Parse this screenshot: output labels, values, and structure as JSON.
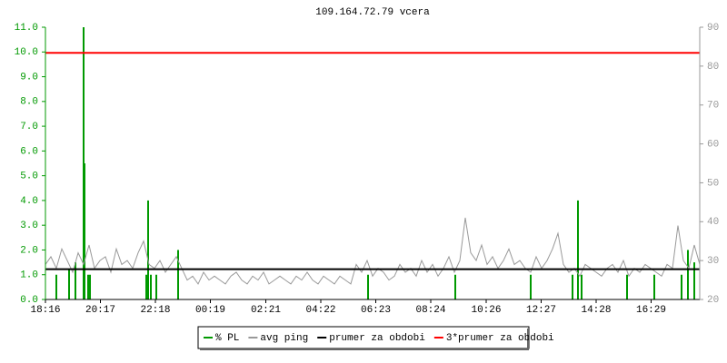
{
  "chart_data": {
    "type": "line",
    "title": "109.164.72.79 vcera",
    "xlim": [
      0,
      1440
    ],
    "xticks": [
      {
        "value": 0,
        "label": "18:16"
      },
      {
        "value": 121,
        "label": "20:17"
      },
      {
        "value": 242,
        "label": "22:18"
      },
      {
        "value": 363,
        "label": "00:19"
      },
      {
        "value": 485,
        "label": "02:21"
      },
      {
        "value": 606,
        "label": "04:22"
      },
      {
        "value": 727,
        "label": "06:23"
      },
      {
        "value": 848,
        "label": "08:24"
      },
      {
        "value": 970,
        "label": "10:26"
      },
      {
        "value": 1091,
        "label": "12:27"
      },
      {
        "value": 1212,
        "label": "14:28"
      },
      {
        "value": 1333,
        "label": "16:29"
      }
    ],
    "ylim": [
      0,
      11
    ],
    "yticks": [
      {
        "value": 0,
        "label": "0.0"
      },
      {
        "value": 1,
        "label": "1.0"
      },
      {
        "value": 2,
        "label": "2.0"
      },
      {
        "value": 3,
        "label": "3.0"
      },
      {
        "value": 4,
        "label": "4.0"
      },
      {
        "value": 5,
        "label": "5.0"
      },
      {
        "value": 6,
        "label": "6.0"
      },
      {
        "value": 7,
        "label": "7.0"
      },
      {
        "value": 8,
        "label": "8.0"
      },
      {
        "value": 9,
        "label": "9.0"
      },
      {
        "value": 10,
        "label": "10.0"
      },
      {
        "value": 11,
        "label": "11.0"
      }
    ],
    "y2lim": [
      20,
      90
    ],
    "y2ticks": [
      20,
      30,
      40,
      50,
      60,
      70,
      80,
      90
    ],
    "grid": false,
    "legend": "bottom",
    "series": [
      {
        "name": "% PL",
        "color": "#009900",
        "style": "impulse",
        "x": [
          24,
          52,
          66,
          84,
          86,
          94,
          98,
          222,
          226,
          232,
          244,
          292,
          710,
          902,
          1068,
          1160,
          1172,
          1180,
          1280,
          1340,
          1400,
          1414,
          1428
        ],
        "values": [
          1.0,
          1.2,
          1.5,
          11.0,
          5.5,
          1.0,
          1.0,
          1.0,
          4.0,
          1.0,
          1.0,
          2.0,
          1.0,
          1.0,
          1.0,
          1.0,
          4.0,
          1.0,
          1.0,
          1.0,
          1.0,
          2.0,
          1.5
        ]
      },
      {
        "name": "avg ping",
        "color": "#999999",
        "axis": "y2",
        "x": [
          0,
          12,
          24,
          36,
          48,
          60,
          72,
          84,
          96,
          108,
          120,
          132,
          144,
          156,
          168,
          180,
          192,
          204,
          216,
          228,
          240,
          252,
          264,
          276,
          288,
          300,
          312,
          324,
          336,
          348,
          360,
          372,
          384,
          396,
          408,
          420,
          432,
          444,
          456,
          468,
          480,
          492,
          504,
          516,
          528,
          540,
          552,
          564,
          576,
          588,
          600,
          612,
          624,
          636,
          648,
          660,
          672,
          684,
          696,
          708,
          720,
          732,
          744,
          756,
          768,
          780,
          792,
          804,
          816,
          828,
          840,
          852,
          864,
          876,
          888,
          900,
          912,
          924,
          936,
          948,
          960,
          972,
          984,
          996,
          1008,
          1020,
          1032,
          1044,
          1056,
          1068,
          1080,
          1092,
          1104,
          1116,
          1128,
          1140,
          1152,
          1164,
          1176,
          1188,
          1200,
          1212,
          1224,
          1236,
          1248,
          1260,
          1272,
          1284,
          1296,
          1308,
          1320,
          1332,
          1344,
          1356,
          1368,
          1380,
          1392,
          1404,
          1416,
          1428,
          1440
        ],
        "values": [
          29,
          31,
          28,
          33,
          30,
          27,
          32,
          29,
          34,
          28,
          30,
          31,
          27,
          33,
          29,
          30,
          28,
          32,
          35,
          29,
          28,
          30,
          27,
          29,
          31,
          28,
          25,
          26,
          24,
          27,
          25,
          26,
          25,
          24,
          26,
          27,
          25,
          24,
          26,
          25,
          27,
          24,
          25,
          26,
          25,
          24,
          26,
          25,
          27,
          25,
          24,
          26,
          25,
          24,
          26,
          25,
          24,
          29,
          27,
          30,
          26,
          28,
          27,
          25,
          26,
          29,
          27,
          28,
          26,
          30,
          27,
          29,
          26,
          28,
          31,
          27,
          30,
          41,
          32,
          30,
          34,
          29,
          31,
          28,
          30,
          33,
          29,
          30,
          28,
          27,
          31,
          28,
          30,
          33,
          37,
          29,
          27,
          28,
          26,
          29,
          28,
          27,
          26,
          28,
          29,
          27,
          30,
          26,
          28,
          27,
          29,
          28,
          27,
          26,
          29,
          28,
          39,
          30,
          28,
          34,
          29
        ]
      },
      {
        "name": "prumer za obdobi",
        "color": "#000000",
        "axis": "y2",
        "values": [
          27.8
        ]
      },
      {
        "name": "3*prumer za obdobi",
        "color": "#ff0000",
        "axis": "y2",
        "values": [
          83.4
        ]
      }
    ]
  }
}
